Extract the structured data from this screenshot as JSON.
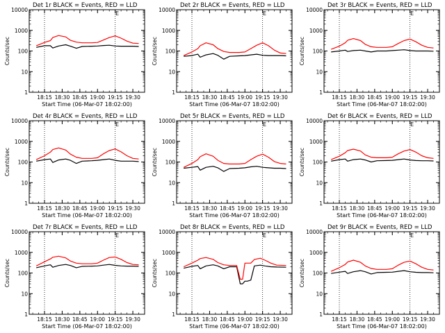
{
  "colors": {
    "events": "#000000",
    "lld": "#ff0000",
    "axes": "#000000",
    "background": "#ffffff"
  },
  "ylabel": "Counts/sec",
  "xlabel": "Start Time (06-Mar-07 18:02:00)",
  "x_ticks": [
    "18:15",
    "18:30",
    "18:45",
    "19:00",
    "19:15",
    "19:30"
  ],
  "y_ticks": [
    "1",
    "10",
    "100",
    "1000",
    "10000"
  ],
  "corner_mark": "E",
  "chart_data": [
    {
      "type": "line",
      "title": "Det 1r BLACK = Events, RED = LLD",
      "x": [
        "18:08",
        "18:15",
        "18:20",
        "18:22",
        "18:27",
        "18:33",
        "18:37",
        "18:42",
        "18:47",
        "18:55",
        "19:00",
        "19:05",
        "19:10",
        "19:15",
        "19:20",
        "19:25",
        "19:30",
        "19:35"
      ],
      "ylim": [
        1,
        10000
      ],
      "yscale": "log",
      "series": [
        {
          "name": "Events",
          "values": [
            150,
            180,
            180,
            140,
            175,
            200,
            170,
            135,
            165,
            170,
            175,
            185,
            190,
            175,
            170,
            170,
            170,
            165
          ]
        },
        {
          "name": "LLD",
          "values": [
            180,
            260,
            320,
            450,
            560,
            480,
            330,
            270,
            250,
            250,
            260,
            340,
            450,
            540,
            420,
            300,
            240,
            230
          ]
        }
      ]
    },
    {
      "type": "line",
      "title": "Det 2r BLACK = Events, RED = LLD",
      "x": [
        "18:08",
        "18:15",
        "18:20",
        "18:22",
        "18:27",
        "18:33",
        "18:37",
        "18:42",
        "18:47",
        "18:55",
        "19:00",
        "19:05",
        "19:10",
        "19:15",
        "19:20",
        "19:25",
        "19:30",
        "19:35"
      ],
      "ylim": [
        1,
        10000
      ],
      "yscale": "log",
      "series": [
        {
          "name": "Events",
          "values": [
            55,
            60,
            70,
            50,
            65,
            75,
            62,
            40,
            55,
            58,
            60,
            65,
            70,
            62,
            60,
            60,
            60,
            58
          ]
        },
        {
          "name": "LLD",
          "values": [
            60,
            90,
            130,
            180,
            250,
            200,
            130,
            95,
            85,
            85,
            90,
            130,
            190,
            250,
            180,
            110,
            80,
            75
          ]
        }
      ]
    },
    {
      "type": "line",
      "title": "Det 3r BLACK = Events, RED = LLD",
      "x": [
        "18:08",
        "18:15",
        "18:20",
        "18:22",
        "18:27",
        "18:33",
        "18:37",
        "18:42",
        "18:47",
        "18:55",
        "19:00",
        "19:05",
        "19:10",
        "19:15",
        "19:20",
        "19:25",
        "19:30",
        "19:35"
      ],
      "ylim": [
        1,
        10000
      ],
      "yscale": "log",
      "series": [
        {
          "name": "Events",
          "values": [
            90,
            100,
            110,
            95,
            105,
            110,
            100,
            90,
            100,
            100,
            105,
            110,
            115,
            105,
            100,
            100,
            100,
            98
          ]
        },
        {
          "name": "LLD",
          "values": [
            120,
            170,
            250,
            330,
            400,
            320,
            210,
            160,
            150,
            150,
            160,
            230,
            320,
            380,
            280,
            190,
            150,
            140
          ]
        }
      ]
    },
    {
      "type": "line",
      "title": "Det 4r BLACK = Events, RED = LLD",
      "x": [
        "18:08",
        "18:15",
        "18:20",
        "18:22",
        "18:27",
        "18:33",
        "18:37",
        "18:42",
        "18:47",
        "18:55",
        "19:00",
        "19:05",
        "19:10",
        "19:15",
        "19:20",
        "19:25",
        "19:30",
        "19:35"
      ],
      "ylim": [
        1,
        10000
      ],
      "yscale": "log",
      "series": [
        {
          "name": "Events",
          "values": [
            110,
            130,
            140,
            95,
            125,
            140,
            120,
            85,
            110,
            115,
            120,
            130,
            140,
            120,
            110,
            110,
            110,
            105
          ]
        },
        {
          "name": "LLD",
          "values": [
            130,
            200,
            300,
            400,
            480,
            380,
            240,
            170,
            150,
            150,
            160,
            250,
            360,
            430,
            310,
            200,
            150,
            140
          ]
        }
      ]
    },
    {
      "type": "line",
      "title": "Det 5r BLACK = Events, RED = LLD",
      "x": [
        "18:08",
        "18:15",
        "18:20",
        "18:22",
        "18:27",
        "18:33",
        "18:37",
        "18:42",
        "18:47",
        "18:55",
        "19:00",
        "19:05",
        "19:10",
        "19:15",
        "19:20",
        "19:25",
        "19:30",
        "19:35"
      ],
      "ylim": [
        1,
        10000
      ],
      "yscale": "log",
      "series": [
        {
          "name": "Events",
          "values": [
            50,
            55,
            60,
            40,
            55,
            62,
            52,
            35,
            48,
            50,
            52,
            58,
            62,
            55,
            52,
            50,
            50,
            48
          ]
        },
        {
          "name": "LLD",
          "values": [
            55,
            85,
            130,
            180,
            250,
            190,
            120,
            85,
            80,
            80,
            85,
            130,
            190,
            240,
            170,
            105,
            85,
            80
          ]
        }
      ]
    },
    {
      "type": "line",
      "title": "Det 6r BLACK = Events, RED = LLD",
      "x": [
        "18:08",
        "18:15",
        "18:20",
        "18:22",
        "18:27",
        "18:33",
        "18:37",
        "18:42",
        "18:47",
        "18:55",
        "19:00",
        "19:05",
        "19:10",
        "19:15",
        "19:20",
        "19:25",
        "19:30",
        "19:35"
      ],
      "ylim": [
        1,
        10000
      ],
      "yscale": "log",
      "series": [
        {
          "name": "Events",
          "values": [
            110,
            130,
            140,
            110,
            130,
            140,
            125,
            100,
            115,
            118,
            120,
            130,
            140,
            125,
            118,
            115,
            115,
            112
          ]
        },
        {
          "name": "LLD",
          "values": [
            130,
            190,
            280,
            360,
            420,
            340,
            220,
            170,
            160,
            160,
            170,
            250,
            340,
            400,
            300,
            200,
            160,
            150
          ]
        }
      ]
    },
    {
      "type": "line",
      "title": "Det 7r BLACK = Events, RED = LLD",
      "x": [
        "18:08",
        "18:15",
        "18:20",
        "18:22",
        "18:27",
        "18:33",
        "18:37",
        "18:42",
        "18:47",
        "18:55",
        "19:00",
        "19:05",
        "19:10",
        "19:15",
        "19:20",
        "19:25",
        "19:30",
        "19:35"
      ],
      "ylim": [
        1,
        10000
      ],
      "yscale": "log",
      "series": [
        {
          "name": "Events",
          "values": [
            180,
            220,
            250,
            190,
            230,
            260,
            230,
            180,
            210,
            215,
            220,
            240,
            260,
            235,
            220,
            215,
            215,
            210
          ]
        },
        {
          "name": "LLD",
          "values": [
            220,
            350,
            480,
            580,
            650,
            540,
            380,
            300,
            280,
            280,
            300,
            420,
            560,
            600,
            460,
            320,
            260,
            250
          ]
        }
      ]
    },
    {
      "type": "line",
      "title": "Det 8r BLACK = Events, RED = LLD",
      "x": [
        "18:08",
        "18:15",
        "18:20",
        "18:22",
        "18:27",
        "18:33",
        "18:37",
        "18:42",
        "18:47",
        "18:53",
        "18:56",
        "18:58",
        "19:00",
        "19:02",
        "19:05",
        "19:08",
        "19:13",
        "19:17",
        "19:22",
        "19:27",
        "19:35"
      ],
      "ylim": [
        1,
        10000
      ],
      "yscale": "log",
      "series": [
        {
          "name": "Events",
          "values": [
            170,
            210,
            230,
            160,
            220,
            250,
            220,
            160,
            200,
            200,
            30,
            30,
            40,
            40,
            45,
            220,
            240,
            220,
            200,
            195,
            190
          ]
        },
        {
          "name": "LLD",
          "values": [
            200,
            300,
            420,
            500,
            560,
            460,
            320,
            250,
            230,
            230,
            50,
            50,
            300,
            300,
            300,
            450,
            520,
            420,
            300,
            240,
            230
          ]
        }
      ]
    },
    {
      "type": "line",
      "title": "Det 9r BLACK = Events, RED = LLD",
      "x": [
        "18:08",
        "18:15",
        "18:20",
        "18:22",
        "18:27",
        "18:33",
        "18:37",
        "18:42",
        "18:47",
        "18:55",
        "19:00",
        "19:05",
        "19:10",
        "19:15",
        "19:20",
        "19:25",
        "19:30",
        "19:35"
      ],
      "ylim": [
        1,
        10000
      ],
      "yscale": "log",
      "series": [
        {
          "name": "Events",
          "values": [
            95,
            110,
            120,
            95,
            115,
            130,
            115,
            90,
            105,
            108,
            110,
            120,
            130,
            115,
            108,
            105,
            105,
            102
          ]
        },
        {
          "name": "LLD",
          "values": [
            120,
            180,
            260,
            340,
            420,
            330,
            220,
            165,
            150,
            150,
            160,
            240,
            330,
            380,
            280,
            190,
            150,
            140
          ]
        }
      ]
    }
  ]
}
